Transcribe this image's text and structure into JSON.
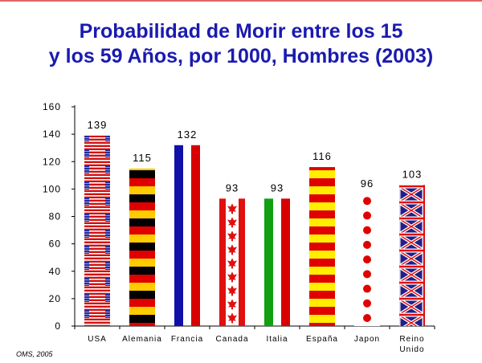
{
  "title": {
    "line1": "Probabilidad de Morir entre los 15",
    "line2": "y los 59 Años, por 1000, Hombres (2003)"
  },
  "credit": "OMS, 2005",
  "chart_data": {
    "type": "bar",
    "title": "Probabilidad de Morir entre los 15 y los 59 Años, por 1000, Hombres (2003)",
    "ylim": [
      0,
      160
    ],
    "yticks": [
      0,
      20,
      40,
      60,
      80,
      100,
      120,
      140,
      160
    ],
    "grid": false,
    "categories": [
      {
        "label": "USA",
        "label2": "",
        "value": 139,
        "style": "usa"
      },
      {
        "label": "Alemania",
        "label2": "",
        "value": 115,
        "style": "germany"
      },
      {
        "label": "Francia",
        "label2": "",
        "value": 132,
        "style": "france"
      },
      {
        "label": "Canada",
        "label2": "",
        "value": 93,
        "style": "canada"
      },
      {
        "label": "Italia",
        "label2": "",
        "value": 93,
        "style": "italy"
      },
      {
        "label": "España",
        "label2": "",
        "value": 116,
        "style": "spain"
      },
      {
        "label": "Japon",
        "label2": "",
        "value": 96,
        "style": "japan"
      },
      {
        "label": "Reino",
        "label2": "Unido",
        "value": 103,
        "style": "uk"
      }
    ],
    "colors": {
      "usa_red": "#d01010",
      "usa_blue": "#2a2a9a",
      "germany_black": "#000000",
      "germany_red": "#e00000",
      "germany_gold": "#ffcc00",
      "france_blue": "#1010a8",
      "france_red": "#d80000",
      "canada_red": "#e01010",
      "italy_green": "#10a010",
      "italy_red": "#d80000",
      "spain_red": "#e00000",
      "spain_yellow": "#ffee00",
      "japan_red": "#e00000",
      "uk_blue": "#20208a",
      "uk_red": "#e01010"
    }
  }
}
